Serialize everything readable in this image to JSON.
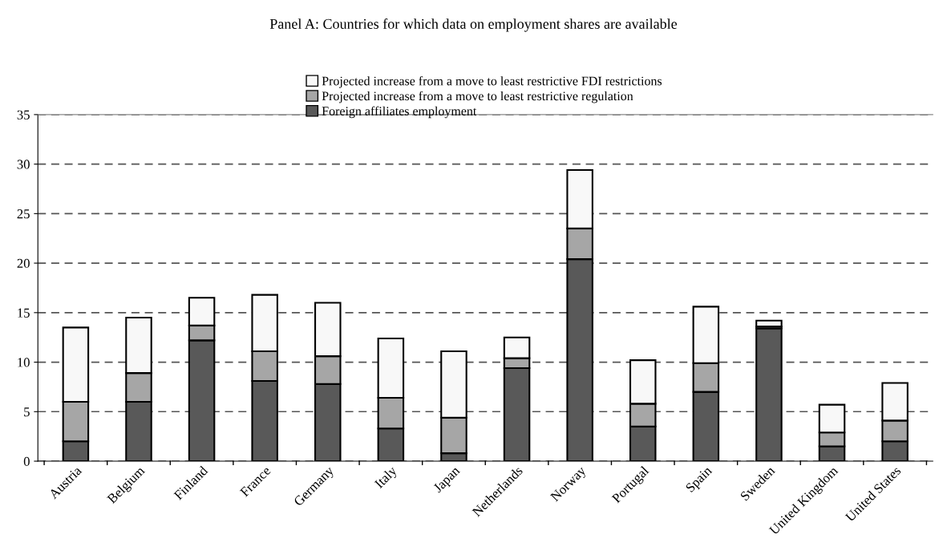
{
  "chart_data": {
    "type": "bar",
    "title": "Panel A: Countries for which data on employment shares are available",
    "categories": [
      "Austria",
      "Belgium",
      "Finland",
      "France",
      "Germany",
      "Italy",
      "Japan",
      "Netherlands",
      "Norway",
      "Portugal",
      "Spain",
      "Sweden",
      "United Kingdom",
      "United States"
    ],
    "stacked": true,
    "series": [
      {
        "name": "Foreign affiliates employment",
        "color": "#595959",
        "values": [
          2.0,
          6.0,
          12.2,
          8.1,
          7.8,
          3.3,
          0.8,
          9.4,
          20.4,
          3.5,
          7.0,
          13.4,
          1.5,
          2.0
        ]
      },
      {
        "name": "Projected increase from a move to least restrictive regulation",
        "color": "#a6a6a6",
        "values": [
          4.0,
          2.9,
          1.5,
          3.0,
          2.8,
          3.1,
          3.6,
          1.0,
          3.1,
          2.3,
          2.9,
          0.2,
          1.4,
          2.1
        ]
      },
      {
        "name": "Projected increase from a move to least restrictive FDI restrictions",
        "color": "#f8f8f8",
        "values": [
          7.5,
          5.6,
          2.8,
          5.7,
          5.4,
          6.0,
          6.7,
          2.1,
          5.9,
          4.4,
          5.7,
          0.6,
          2.8,
          3.8
        ]
      }
    ],
    "ylim": [
      0,
      35
    ],
    "yticks": [
      0,
      5,
      10,
      15,
      20,
      25,
      30,
      35
    ],
    "grid": "y",
    "legend": "top"
  }
}
